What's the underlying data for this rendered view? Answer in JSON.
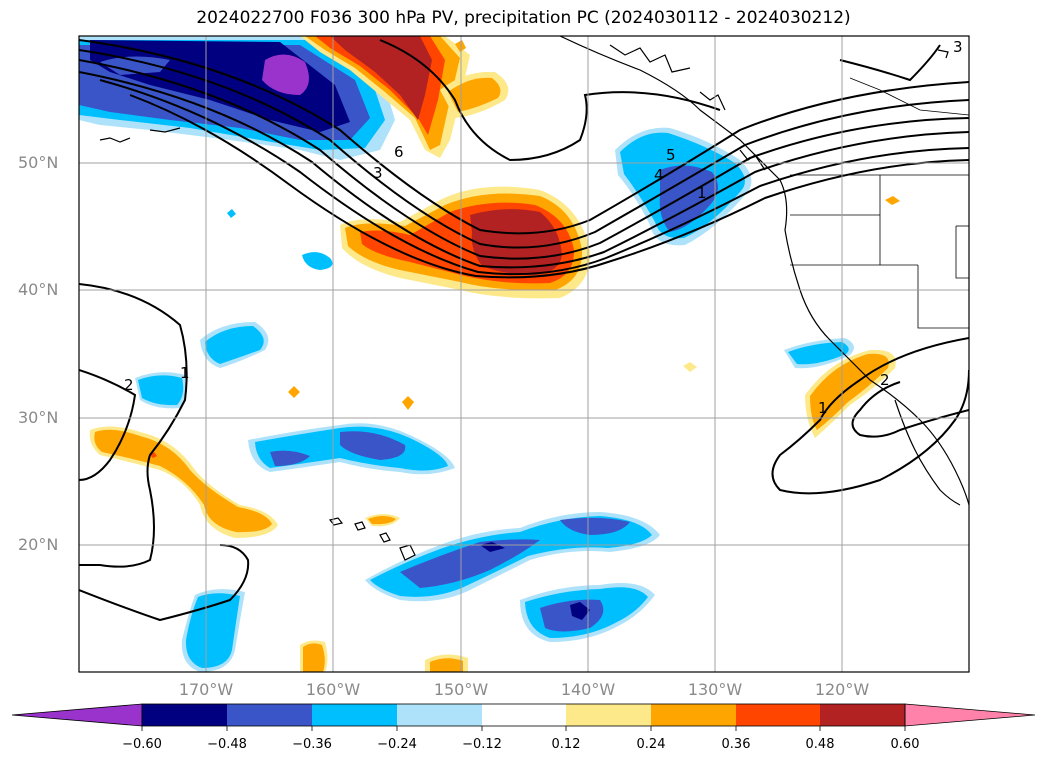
{
  "title": "2024022700 F036 300 hPa PV, precipitation PC (2024030112 - 2024030212)",
  "lat_labels": [
    "50°N",
    "40°N",
    "30°N",
    "20°N"
  ],
  "lon_labels": [
    "170°W",
    "160°W",
    "150°W",
    "140°W",
    "130°W",
    "120°W"
  ],
  "contour_labels": [
    "6",
    "5",
    "4",
    "3",
    "3",
    "2",
    "1",
    "1",
    "1",
    "2"
  ],
  "colorbar": {
    "ticks": [
      "−0.60",
      "−0.48",
      "−0.36",
      "−0.24",
      "−0.12",
      "0.12",
      "0.24",
      "0.36",
      "0.48",
      "0.60"
    ],
    "colors": [
      "#9933cc",
      "#000080",
      "#3a55c8",
      "#00bfff",
      "#aee2fa",
      "#ffffff",
      "#fde98a",
      "#ffa500",
      "#ff4500",
      "#b22222",
      "#ff82aa"
    ]
  },
  "palette": {
    "purple": "#9933cc",
    "navy": "#000080",
    "blue": "#3a55c8",
    "cyan": "#00bfff",
    "lightblue": "#aee2fa",
    "yellow": "#fde98a",
    "orange": "#ffa500",
    "red": "#ff4500",
    "darkred": "#b22222"
  }
}
